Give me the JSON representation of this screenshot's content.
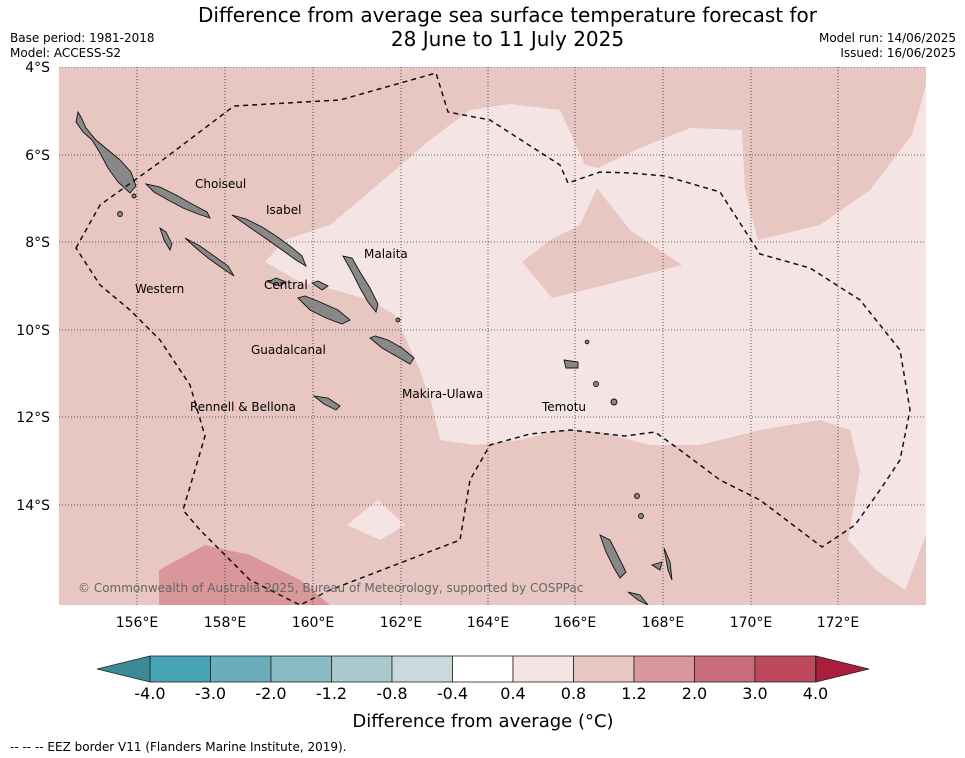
{
  "header": {
    "title_line1": "Difference from average sea surface temperature forecast for",
    "title_line2": "28 June to 11 July 2025",
    "base_period": "Base period: 1981-2018",
    "model": "Model: ACCESS-S2",
    "model_run": "Model run: 14/06/2025",
    "issued": "Issued: 16/06/2025"
  },
  "map": {
    "lat_labels": [
      "4°S",
      "6°S",
      "8°S",
      "10°S",
      "12°S",
      "14°S"
    ],
    "lon_labels": [
      "156°E",
      "158°E",
      "160°E",
      "162°E",
      "164°E",
      "166°E",
      "168°E",
      "170°E",
      "172°E"
    ],
    "provinces": [
      "Choiseul",
      "Isabel",
      "Malaita",
      "Western",
      "Central",
      "Guadalcanal",
      "Makira-Ulawa",
      "Rennell & Bellona",
      "Temotu"
    ],
    "copyright": "© Commonwealth of Australia 2025, Bureau of Meteorology, supported by COSPPac",
    "colors": {
      "land": "#888888",
      "band_04_08": "#f4e5e4",
      "band_08_12": "#e8c7c3",
      "band_12_20": "#d9969b"
    }
  },
  "colorbar": {
    "tick_labels": [
      "-4.0",
      "-3.0",
      "-2.0",
      "-1.2",
      "-0.8",
      "-0.4",
      "0.4",
      "0.8",
      "1.2",
      "2.0",
      "3.0",
      "4.0"
    ],
    "colors": [
      "#45a3b3",
      "#6aaebc",
      "#8abcc5",
      "#aacacd",
      "#c9d9dc",
      "#ffffff",
      "#f4e5e4",
      "#e8c7c3",
      "#d9969b",
      "#c96c79",
      "#bd4a5c"
    ],
    "extend_low_color": "#3b8a96",
    "extend_high_color": "#a91e3d",
    "label": "Difference from average (°C)"
  },
  "footer": {
    "legend_text": "--  --  -- EEZ border V11 (Flanders Marine Institute, 2019)."
  }
}
